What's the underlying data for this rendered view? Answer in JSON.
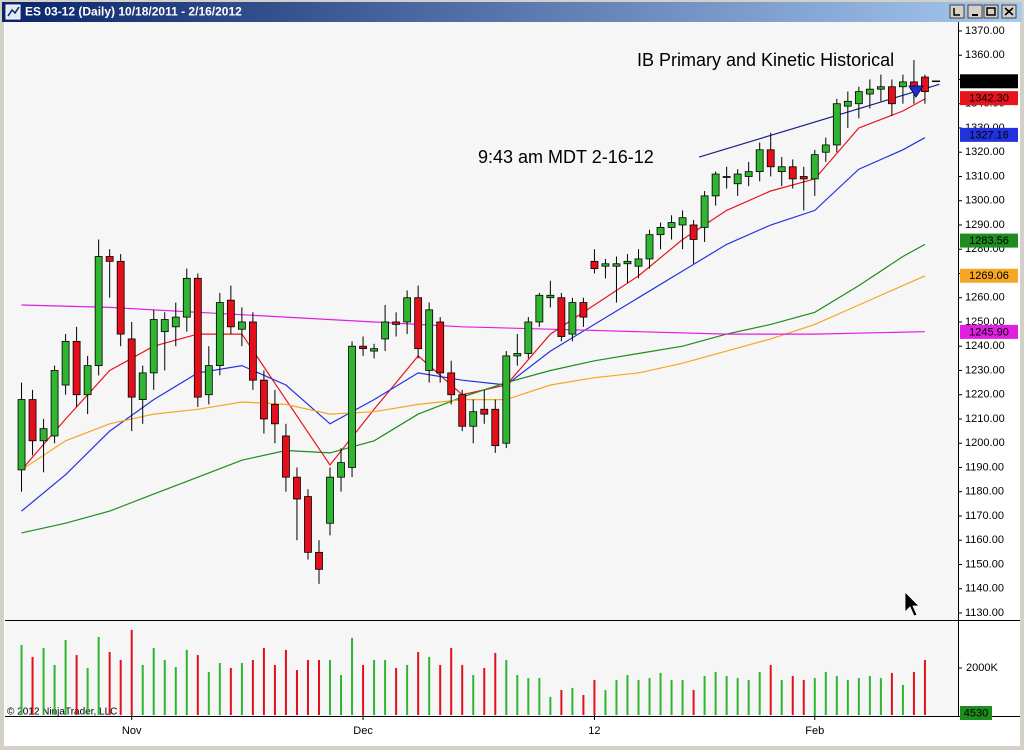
{
  "chart_data": [
    {
      "type": "candlestick",
      "title": "ES 03-12 (Daily)  10/18/2011 - 2/16/2012",
      "annotations": [
        "IB Primary and Kinetic Historical",
        "9:43 am MDT 2-16-12"
      ],
      "up_color": "#2fb52f",
      "down_color": "#e3101c",
      "xlim": [
        -1.5,
        85
      ],
      "xticks": [
        {
          "value": 10,
          "label": "Nov"
        },
        {
          "value": 31,
          "label": "Dec"
        },
        {
          "value": 52,
          "label": "12"
        },
        {
          "value": 72,
          "label": "Feb"
        }
      ],
      "ylim": [
        1127.1,
        1373.7
      ],
      "yticks": [
        {
          "value": 1130,
          "label": "1130.00"
        },
        {
          "value": 1140,
          "label": "1140.00"
        },
        {
          "value": 1150,
          "label": "1150.00"
        },
        {
          "value": 1160,
          "label": "1160.00"
        },
        {
          "value": 1170,
          "label": "1170.00"
        },
        {
          "value": 1180,
          "label": "1180.00"
        },
        {
          "value": 1190,
          "label": "1190.00"
        },
        {
          "value": 1200,
          "label": "1200.00"
        },
        {
          "value": 1210,
          "label": "1210.00"
        },
        {
          "value": 1220,
          "label": "1220.00"
        },
        {
          "value": 1230,
          "label": "1230.00"
        },
        {
          "value": 1240,
          "label": "1240.00"
        },
        {
          "value": 1250,
          "label": "1250.00"
        },
        {
          "value": 1260,
          "label": "1260.00"
        },
        {
          "value": 1270,
          "label": "1270.00"
        },
        {
          "value": 1280,
          "label": "1280.00"
        },
        {
          "value": 1290,
          "label": "1290.00"
        },
        {
          "value": 1300,
          "label": "1300.00"
        },
        {
          "value": 1310,
          "label": "1310.00"
        },
        {
          "value": 1320,
          "label": "1320.00"
        },
        {
          "value": 1330,
          "label": "1330.00"
        },
        {
          "value": 1340,
          "label": "1340.00"
        },
        {
          "value": 1350,
          "label": "1350.00"
        },
        {
          "value": 1360,
          "label": "1360.00"
        },
        {
          "value": 1370,
          "label": "1370.00"
        }
      ],
      "x": [
        0,
        1,
        2,
        3,
        4,
        5,
        6,
        7,
        8,
        9,
        10,
        11,
        12,
        13,
        14,
        15,
        16,
        17,
        18,
        19,
        20,
        21,
        22,
        23,
        24,
        25,
        26,
        27,
        28,
        29,
        30,
        31,
        32,
        33,
        34,
        35,
        36,
        37,
        38,
        39,
        40,
        41,
        42,
        43,
        44,
        45,
        46,
        47,
        48,
        49,
        50,
        51,
        52,
        53,
        54,
        55,
        56,
        57,
        58,
        59,
        60,
        61,
        62,
        63,
        64,
        65,
        66,
        67,
        68,
        69,
        70,
        71,
        72,
        73,
        74,
        75,
        76,
        77,
        78,
        79,
        80,
        81,
        82
      ],
      "open": [
        1189,
        1218,
        1201,
        1203,
        1224,
        1242,
        1220,
        1232,
        1277,
        1275,
        1243,
        1218,
        1229,
        1246,
        1248,
        1252,
        1268,
        1220,
        1232,
        1259,
        1247,
        1250,
        1226,
        1216,
        1203,
        1186,
        1178,
        1155,
        1167,
        1186,
        1190,
        1240,
        1238,
        1243,
        1250,
        1250,
        1260,
        1230,
        1250,
        1229,
        1220,
        1207,
        1214,
        1214,
        1200,
        1236,
        1237,
        1250,
        1260,
        1260,
        1245,
        1258,
        1275,
        1273,
        1273,
        1274,
        1273,
        1276,
        1286,
        1289,
        1290,
        1290,
        1289,
        1302,
        1310,
        1307,
        1310,
        1312,
        1321,
        1312,
        1314,
        1310,
        1309,
        1320,
        1323,
        1339,
        1340,
        1344,
        1346,
        1347,
        1347,
        1349,
        1351
      ],
      "high": [
        1225,
        1222,
        1210,
        1232,
        1245,
        1248,
        1236,
        1284,
        1280,
        1278,
        1250,
        1232,
        1255,
        1254,
        1258,
        1272,
        1270,
        1240,
        1262,
        1265,
        1256,
        1254,
        1230,
        1222,
        1208,
        1190,
        1181,
        1160,
        1190,
        1198,
        1242,
        1244,
        1241,
        1257,
        1254,
        1263,
        1265,
        1258,
        1252,
        1234,
        1222,
        1218,
        1222,
        1218,
        1238,
        1245,
        1252,
        1262,
        1267,
        1262,
        1260,
        1260,
        1280,
        1276,
        1277,
        1278,
        1280,
        1288,
        1291,
        1294,
        1296,
        1292,
        1304,
        1312,
        1314,
        1313,
        1316,
        1324,
        1328,
        1318,
        1317,
        1314,
        1321,
        1326,
        1342,
        1345,
        1347,
        1350,
        1352,
        1350,
        1352,
        1358,
        1352
      ],
      "low": [
        1180,
        1195,
        1188,
        1200,
        1220,
        1215,
        1212,
        1228,
        1260,
        1240,
        1205,
        1208,
        1222,
        1230,
        1240,
        1246,
        1215,
        1216,
        1228,
        1245,
        1240,
        1222,
        1204,
        1200,
        1180,
        1160,
        1152,
        1142,
        1162,
        1180,
        1186,
        1236,
        1235,
        1238,
        1244,
        1245,
        1235,
        1225,
        1225,
        1216,
        1205,
        1200,
        1208,
        1196,
        1198,
        1232,
        1235,
        1248,
        1256,
        1242,
        1242,
        1248,
        1270,
        1268,
        1258,
        1266,
        1268,
        1272,
        1280,
        1284,
        1280,
        1274,
        1283,
        1298,
        1305,
        1302,
        1306,
        1308,
        1310,
        1306,
        1305,
        1296,
        1302,
        1316,
        1320,
        1330,
        1334,
        1338,
        1341,
        1335,
        1340,
        1340,
        1340
      ],
      "close": [
        1218,
        1201,
        1206,
        1230,
        1242,
        1220,
        1232,
        1277,
        1275,
        1245,
        1219,
        1229,
        1251,
        1251,
        1252,
        1268,
        1219,
        1232,
        1258,
        1248,
        1250,
        1226,
        1210,
        1208,
        1186,
        1177,
        1155,
        1148,
        1186,
        1192,
        1240,
        1239,
        1239,
        1250,
        1249,
        1260,
        1239,
        1255,
        1229,
        1220,
        1207,
        1213,
        1212,
        1199,
        1236,
        1237,
        1250,
        1261,
        1261,
        1244,
        1258,
        1252,
        1272,
        1274,
        1274,
        1275,
        1276,
        1286,
        1289,
        1291,
        1293,
        1284,
        1302,
        1311,
        1310,
        1311,
        1312,
        1321,
        1314,
        1314,
        1309,
        1309,
        1319,
        1323,
        1340,
        1341,
        1345,
        1346,
        1347,
        1340,
        1349,
        1346,
        1345
      ],
      "last_price": {
        "value": 1349.25,
        "label": "1349.25"
      },
      "series": [
        {
          "color": "#e8141c",
          "text_color": "#ffffff",
          "x": [
            0,
            4,
            8,
            12,
            16,
            20,
            24,
            28,
            32,
            36,
            40,
            44,
            48,
            52,
            56,
            60,
            64,
            68,
            72,
            76,
            80,
            82
          ],
          "values": [
            1189,
            1210,
            1230,
            1240,
            1245,
            1245,
            1218,
            1191,
            1214,
            1236,
            1220,
            1224,
            1245,
            1257,
            1269,
            1284,
            1296,
            1304,
            1309,
            1330,
            1337,
            1342
          ],
          "last_label": {
            "value": 1342.3,
            "label": "1342.30"
          }
        },
        {
          "color": "#2233dd",
          "text_color": "#ffffff",
          "x": [
            0,
            4,
            8,
            12,
            16,
            20,
            24,
            28,
            32,
            36,
            40,
            44,
            48,
            52,
            56,
            60,
            64,
            68,
            72,
            76,
            80,
            82
          ],
          "values": [
            1172,
            1187,
            1205,
            1218,
            1229,
            1232,
            1224,
            1208,
            1218,
            1229,
            1226,
            1224,
            1238,
            1249,
            1260,
            1271,
            1282,
            1290,
            1296,
            1313,
            1321,
            1326
          ],
          "last_label": {
            "value": 1327.16,
            "label": "1327.16"
          }
        },
        {
          "color": "#1e8c1e",
          "text_color": "#ffffff",
          "x": [
            0,
            4,
            8,
            12,
            16,
            20,
            24,
            28,
            32,
            36,
            40,
            44,
            48,
            52,
            56,
            60,
            64,
            68,
            72,
            76,
            80,
            82
          ],
          "values": [
            1163,
            1167,
            1172,
            1179,
            1186,
            1193,
            1197,
            1196,
            1201,
            1212,
            1219,
            1225,
            1230,
            1234,
            1237,
            1240,
            1245,
            1249,
            1254,
            1265,
            1277,
            1282
          ],
          "last_label": {
            "value": 1283.56,
            "label": "1283.56"
          }
        },
        {
          "color": "#f5a623",
          "text_color": "#000000",
          "x": [
            0,
            4,
            8,
            12,
            16,
            20,
            24,
            28,
            32,
            36,
            40,
            44,
            48,
            52,
            56,
            60,
            64,
            68,
            72,
            76,
            80,
            82
          ],
          "values": [
            1189,
            1201,
            1208,
            1212,
            1214,
            1217,
            1216,
            1212,
            1213,
            1216,
            1218,
            1218,
            1224,
            1227,
            1229,
            1233,
            1238,
            1243,
            1249,
            1257,
            1265,
            1269
          ],
          "last_label": {
            "value": 1269.06,
            "label": "1269.06"
          }
        },
        {
          "color": "#e21ee2",
          "text_color": "#ffffff",
          "x": [
            0,
            8,
            16,
            24,
            32,
            40,
            48,
            56,
            64,
            72,
            82
          ],
          "values": [
            1257,
            1256,
            1254,
            1252,
            1250,
            1248,
            1247,
            1246,
            1245,
            1245,
            1246
          ],
          "last_label": {
            "value": 1245.9,
            "label": "1245.90"
          }
        }
      ],
      "trendline": {
        "color": "#1a237e",
        "x": [
          61.5,
          83.3
        ],
        "values": [
          1318,
          1348
        ]
      }
    },
    {
      "type": "bar",
      "copyright": "© 2012 NinjaTrader, LLC",
      "ylim": [
        0,
        3956
      ],
      "yticks": [
        {
          "value": 2000,
          "label": "2000K"
        }
      ],
      "last_volume": 4530,
      "values": [
        2980,
        2470,
        2850,
        2130,
        3190,
        2550,
        2000,
        3320,
        2680,
        2340,
        3620,
        2130,
        2850,
        2340,
        2040,
        2770,
        2550,
        1830,
        2210,
        2000,
        2210,
        2340,
        2850,
        2130,
        2770,
        1910,
        2340,
        2340,
        2340,
        1700,
        3280,
        2130,
        2340,
        2340,
        2000,
        2130,
        2680,
        2470,
        2130,
        2850,
        2130,
        1700,
        2000,
        2640,
        2340,
        1700,
        1570,
        1570,
        770,
        1060,
        1150,
        850,
        1490,
        1060,
        1490,
        1700,
        1490,
        1570,
        1790,
        1490,
        1490,
        1060,
        1660,
        1830,
        1660,
        1570,
        1490,
        1830,
        2130,
        1490,
        1660,
        1490,
        1570,
        1830,
        1660,
        1490,
        1570,
        1660,
        1570,
        1790,
        1280,
        1830,
        2340
      ]
    }
  ]
}
